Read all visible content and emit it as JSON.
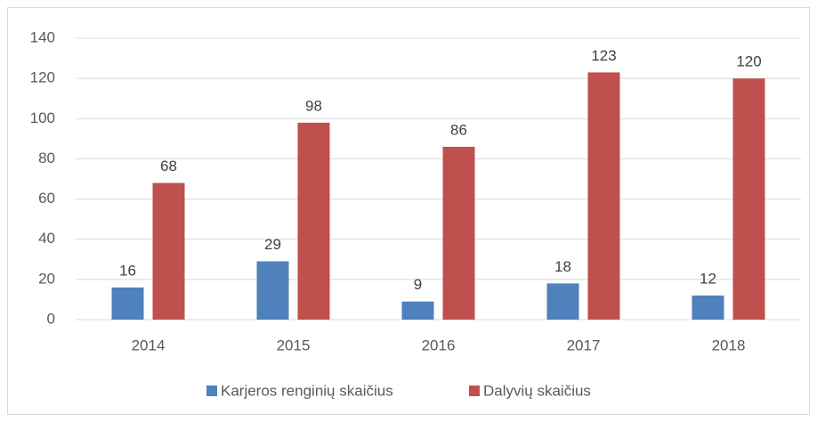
{
  "chart_data": {
    "type": "bar",
    "categories": [
      "2014",
      "2015",
      "2016",
      "2017",
      "2018"
    ],
    "series": [
      {
        "name": "Karjeros renginių skaičius",
        "color": "#4f81bd",
        "values": [
          16,
          29,
          9,
          18,
          12
        ]
      },
      {
        "name": "Dalyvių skaičius",
        "color": "#c0504d",
        "values": [
          68,
          98,
          86,
          123,
          120
        ]
      }
    ],
    "ylim": [
      0,
      140
    ],
    "yticks": [
      0,
      20,
      40,
      60,
      80,
      100,
      120,
      140
    ],
    "grid": true,
    "legend": "bottom"
  }
}
